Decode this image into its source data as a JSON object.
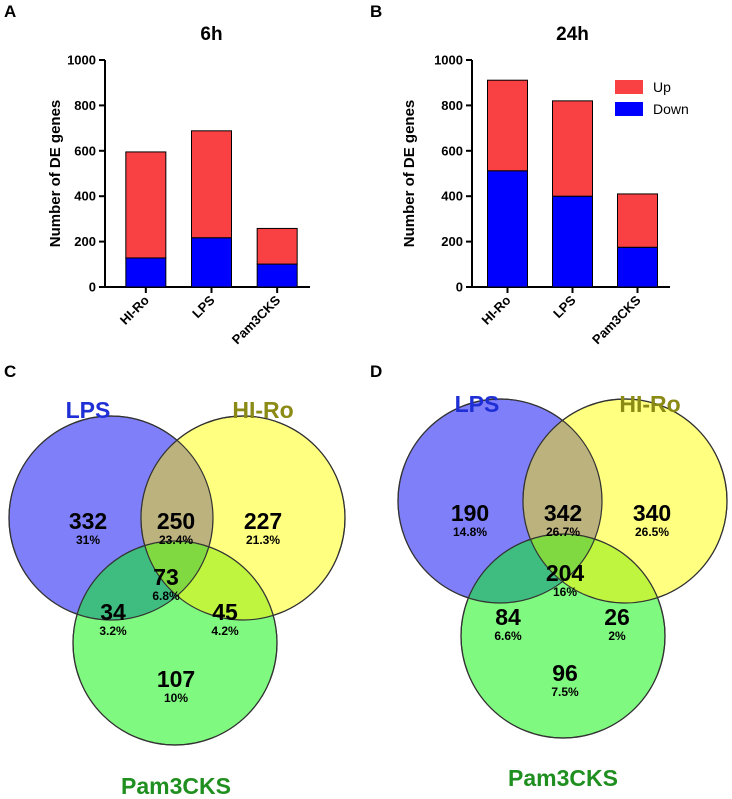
{
  "chart_data": [
    {
      "panel": "A",
      "type": "bar",
      "stacked": true,
      "title": "6h",
      "ylabel": "Number of DE genes",
      "xlabel": "",
      "ylim": [
        0,
        1000
      ],
      "yticks": [
        "0",
        "200",
        "400",
        "600",
        "800",
        "1000"
      ],
      "categories": [
        "HI-Ro",
        "LPS",
        "Pam3CKS"
      ],
      "series": [
        {
          "name": "Down",
          "color": "#0000ff",
          "values": [
            128,
            217,
            101
          ]
        },
        {
          "name": "Up",
          "color": "#f94144",
          "values": [
            467,
            471,
            157
          ]
        }
      ]
    },
    {
      "panel": "B",
      "type": "bar",
      "stacked": true,
      "title": "24h",
      "ylabel": "Number of DE genes",
      "xlabel": "",
      "ylim": [
        0,
        1000
      ],
      "yticks": [
        "0",
        "200",
        "400",
        "600",
        "800",
        "1000"
      ],
      "categories": [
        "HI-Ro",
        "LPS",
        "Pam3CKS"
      ],
      "legend": [
        "Up",
        "Down"
      ],
      "series": [
        {
          "name": "Down",
          "color": "#0000ff",
          "values": [
            512,
            400,
            175
          ]
        },
        {
          "name": "Up",
          "color": "#f94144",
          "values": [
            399,
            420,
            235
          ]
        }
      ]
    },
    {
      "panel": "C",
      "type": "venn",
      "sets": [
        {
          "name": "LPS",
          "fill": "#7f7ff9",
          "label_color": "#1f2fd6"
        },
        {
          "name": "HI-Ro",
          "fill": "#ffff80",
          "label_color": "#8a8a14"
        },
        {
          "name": "Pam3CKS",
          "fill": "#80f980",
          "label_color": "#1f8f1f"
        }
      ],
      "regions": [
        {
          "sets": [
            "LPS"
          ],
          "count": "332",
          "pct": "31%"
        },
        {
          "sets": [
            "LPS",
            "HI-Ro"
          ],
          "count": "250",
          "pct": "23.4%"
        },
        {
          "sets": [
            "HI-Ro"
          ],
          "count": "227",
          "pct": "21.3%"
        },
        {
          "sets": [
            "LPS",
            "HI-Ro",
            "Pam3CKS"
          ],
          "count": "73",
          "pct": "6.8%"
        },
        {
          "sets": [
            "LPS",
            "Pam3CKS"
          ],
          "count": "34",
          "pct": "3.2%"
        },
        {
          "sets": [
            "HI-Ro",
            "Pam3CKS"
          ],
          "count": "45",
          "pct": "4.2%"
        },
        {
          "sets": [
            "Pam3CKS"
          ],
          "count": "107",
          "pct": "10%"
        }
      ]
    },
    {
      "panel": "D",
      "type": "venn",
      "sets": [
        {
          "name": "LPS",
          "fill": "#7f7ff9",
          "label_color": "#1f2fd6"
        },
        {
          "name": "HI-Ro",
          "fill": "#ffff80",
          "label_color": "#8a8a14"
        },
        {
          "name": "Pam3CKS",
          "fill": "#80f980",
          "label_color": "#1f8f1f"
        }
      ],
      "regions": [
        {
          "sets": [
            "LPS"
          ],
          "count": "190",
          "pct": "14.8%"
        },
        {
          "sets": [
            "LPS",
            "HI-Ro"
          ],
          "count": "342",
          "pct": "26.7%"
        },
        {
          "sets": [
            "HI-Ro"
          ],
          "count": "340",
          "pct": "26.5%"
        },
        {
          "sets": [
            "LPS",
            "HI-Ro",
            "Pam3CKS"
          ],
          "count": "204",
          "pct": "16%"
        },
        {
          "sets": [
            "LPS",
            "Pam3CKS"
          ],
          "count": "84",
          "pct": "6.6%"
        },
        {
          "sets": [
            "HI-Ro",
            "Pam3CKS"
          ],
          "count": "26",
          "pct": "2%"
        },
        {
          "sets": [
            "Pam3CKS"
          ],
          "count": "96",
          "pct": "7.5%"
        }
      ]
    }
  ]
}
